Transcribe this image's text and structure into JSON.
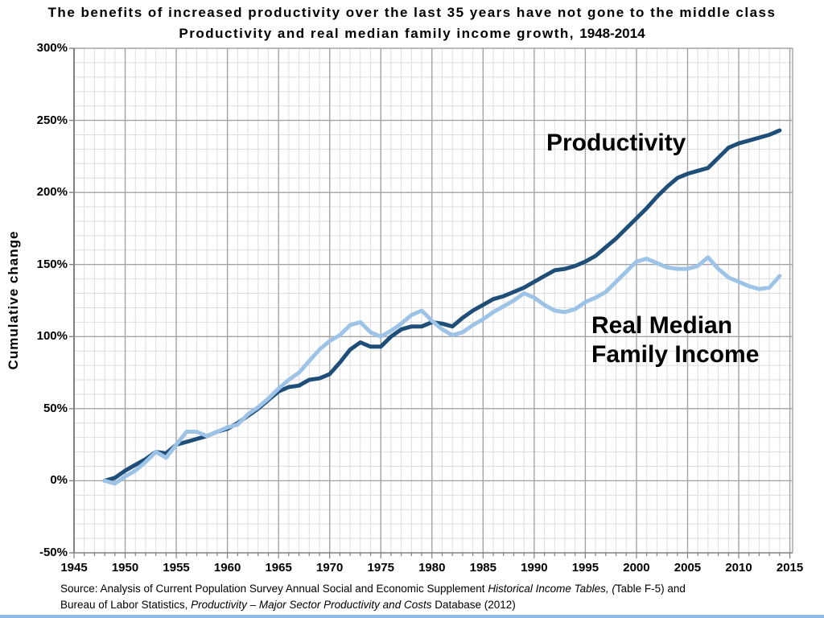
{
  "header": {
    "title_line1": "The benefits of increased productivity over the last 35 years have not gone to the middle class",
    "title_line2_main": "Productivity and real median family income growth,",
    "title_line2_years": "1948-2014"
  },
  "y_axis": {
    "label": "Cumulative change",
    "ticks": [
      {
        "label": "300%",
        "value": 300
      },
      {
        "label": "250%",
        "value": 250
      },
      {
        "label": "200%",
        "value": 200
      },
      {
        "label": "150%",
        "value": 150
      },
      {
        "label": "100%",
        "value": 100
      },
      {
        "label": "50%",
        "value": 50
      },
      {
        "label": "0%",
        "value": 0
      },
      {
        "label": "-50%",
        "value": -50
      }
    ]
  },
  "x_axis": {
    "ticks": [
      {
        "label": "1945",
        "value": 1945
      },
      {
        "label": "1950",
        "value": 1950
      },
      {
        "label": "1955",
        "value": 1955
      },
      {
        "label": "1960",
        "value": 1960
      },
      {
        "label": "1965",
        "value": 1965
      },
      {
        "label": "1970",
        "value": 1970
      },
      {
        "label": "1975",
        "value": 1975
      },
      {
        "label": "1980",
        "value": 1980
      },
      {
        "label": "1985",
        "value": 1985
      },
      {
        "label": "1990",
        "value": 1990
      },
      {
        "label": "1995",
        "value": 1995
      },
      {
        "label": "2000",
        "value": 2000
      },
      {
        "label": "2005",
        "value": 2005
      },
      {
        "label": "2010",
        "value": 2010
      },
      {
        "label": "2015",
        "value": 2015
      }
    ]
  },
  "annotations": {
    "productivity": "Productivity",
    "income": "Real Median\nFamily Income"
  },
  "source": {
    "line1_normal": "Source:  Analysis of Current Population Survey Annual Social and Economic Supplement ",
    "line1_italic": "Historical Income Tables, (",
    "line1_end": "Table F-5) and",
    "line2_normal": "Bureau of Labor Statistics, ",
    "line2_italic": "Productivity – Major Sector Productivity and Costs",
    "line2_end": " Database (2012)"
  },
  "colors": {
    "productivity": "#1F4E79",
    "income": "#9DC3E6",
    "grid_minor": "#DEDEDE",
    "grid_major": "#A3A3A3",
    "axis": "#808080",
    "bottom_bar": "#8FB9E8"
  },
  "chart_data": {
    "type": "line",
    "title": "The benefits of increased productivity over the last 35 years have not gone to the middle class",
    "subtitle": "Productivity and real median family income growth, 1948-2014",
    "xlabel": "",
    "ylabel": "Cumulative change",
    "xlim": [
      1945,
      2015
    ],
    "ylim": [
      -50,
      300
    ],
    "grid": "major and minor, both axes",
    "legend": "none (direct line labels)",
    "x": [
      1948,
      1949,
      1950,
      1951,
      1952,
      1953,
      1954,
      1955,
      1956,
      1957,
      1958,
      1959,
      1960,
      1961,
      1962,
      1963,
      1964,
      1965,
      1966,
      1967,
      1968,
      1969,
      1970,
      1971,
      1972,
      1973,
      1974,
      1975,
      1976,
      1977,
      1978,
      1979,
      1980,
      1981,
      1982,
      1983,
      1984,
      1985,
      1986,
      1987,
      1988,
      1989,
      1990,
      1991,
      1992,
      1993,
      1994,
      1995,
      1996,
      1997,
      1998,
      1999,
      2000,
      2001,
      2002,
      2003,
      2004,
      2005,
      2006,
      2007,
      2008,
      2009,
      2010,
      2011,
      2012,
      2013,
      2014
    ],
    "series": [
      {
        "name": "Productivity",
        "color_key": "productivity",
        "values": [
          0,
          2,
          7,
          11,
          15,
          20,
          19,
          25,
          27,
          29,
          31,
          34,
          36,
          40,
          45,
          50,
          56,
          62,
          65,
          66,
          70,
          71,
          74,
          82,
          91,
          96,
          93,
          93,
          100,
          105,
          107,
          107,
          110,
          109,
          107,
          113,
          118,
          122,
          126,
          128,
          131,
          134,
          138,
          142,
          146,
          147,
          149,
          152,
          156,
          162,
          168,
          175,
          182,
          189,
          197,
          204,
          210,
          213,
          215,
          217,
          224,
          231,
          234,
          236,
          238,
          240,
          243
        ]
      },
      {
        "name": "Real Median Family Income",
        "color_key": "income",
        "values": [
          0,
          -2,
          3,
          7,
          13,
          20,
          16,
          25,
          34,
          34,
          31,
          34,
          37,
          39,
          46,
          51,
          57,
          64,
          70,
          75,
          83,
          91,
          97,
          101,
          108,
          110,
          103,
          100,
          104,
          109,
          115,
          118,
          111,
          105,
          101,
          103,
          108,
          112,
          117,
          121,
          125,
          130,
          127,
          122,
          118,
          117,
          119,
          124,
          127,
          131,
          138,
          145,
          152,
          154,
          151,
          148,
          147,
          147,
          149,
          155,
          147,
          141,
          138,
          135,
          133,
          134,
          142
        ]
      }
    ]
  }
}
